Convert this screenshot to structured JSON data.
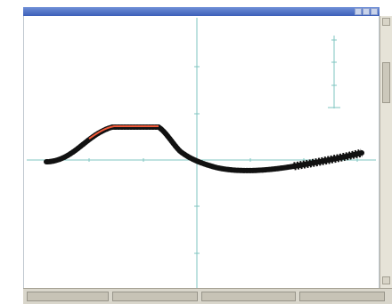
{
  "window": {
    "title": "",
    "statusbar": {
      "segments": [
        "",
        "",
        "",
        ""
      ]
    }
  },
  "colors": {
    "axis": "#7fc6c0",
    "curve_dark": "#111111",
    "curve_highlight": "#f05a3a",
    "titlebar": "#3c5fb8",
    "frame": "#e6e3d8"
  },
  "icons": {
    "minimize": "minimize-icon",
    "maximize": "maximize-icon",
    "close": "close-icon",
    "scroll_up": "chevron-up-icon",
    "scroll_down": "chevron-down-icon"
  }
}
